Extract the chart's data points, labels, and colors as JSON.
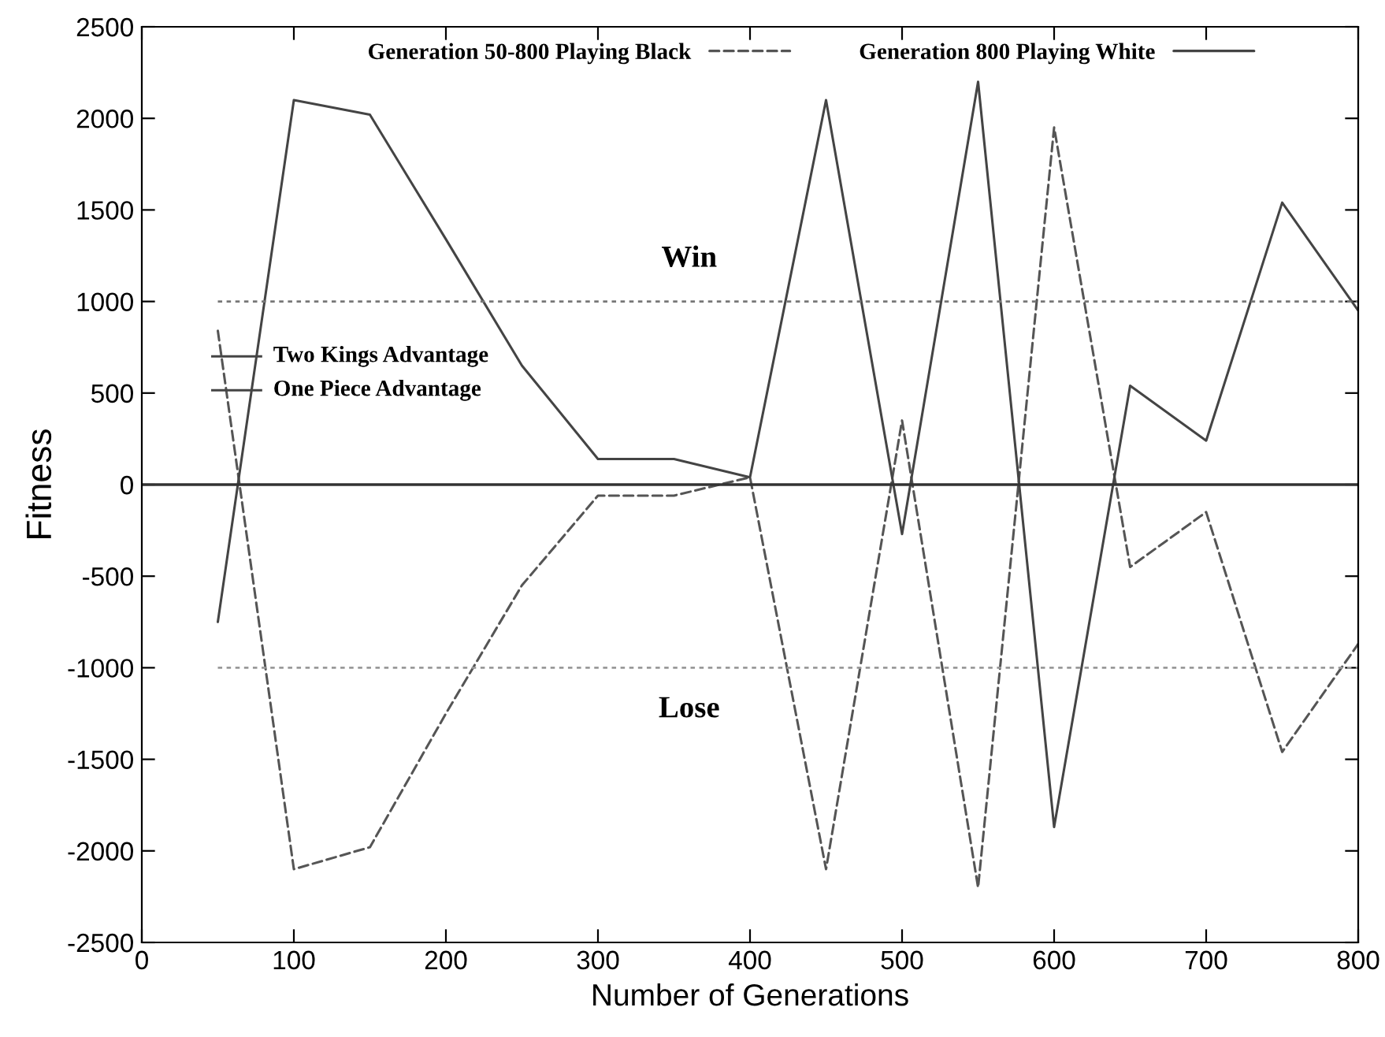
{
  "chart_data": {
    "type": "line",
    "xlabel": "Number of Generations",
    "ylabel": "Fitness",
    "x": [
      50,
      100,
      150,
      200,
      250,
      300,
      350,
      400,
      450,
      500,
      550,
      600,
      650,
      700,
      750,
      800
    ],
    "series": [
      {
        "name": "Generation 50-800 Playing Black",
        "color": "#555555",
        "line_style": "dashed",
        "values": [
          840,
          -2100,
          -1980,
          -1250,
          -550,
          -60,
          -60,
          40,
          -2100,
          350,
          -2200,
          1950,
          -450,
          -150,
          -1460,
          -870
        ]
      },
      {
        "name": "Generation 800 Playing White",
        "color": "#444444",
        "line_style": "solid",
        "values": [
          -750,
          2100,
          2020,
          1340,
          650,
          140,
          140,
          40,
          2100,
          -270,
          2200,
          -1870,
          540,
          240,
          1540,
          950
        ]
      }
    ],
    "xlim": [
      0,
      800
    ],
    "ylim": [
      -2500,
      2500
    ],
    "xticks": [
      0,
      100,
      200,
      300,
      400,
      500,
      600,
      700,
      800
    ],
    "yticks": [
      -2500,
      -2000,
      -1500,
      -1000,
      -500,
      0,
      500,
      1000,
      1500,
      2000,
      2500
    ],
    "ref_lines": [
      {
        "axis": "y",
        "value": 1000,
        "label": "Win",
        "color": "#777777",
        "line_style": "dotted"
      },
      {
        "axis": "y",
        "value": -1000,
        "label": "Lose",
        "color": "#999999",
        "line_style": "dotted"
      },
      {
        "axis": "y",
        "value": 0,
        "color": "#333333",
        "line_style": "solid"
      }
    ],
    "annotations": [
      "Two Kings Advantage",
      "One Piece Advantage"
    ],
    "legend": "top",
    "grid": false,
    "marker": "none"
  }
}
